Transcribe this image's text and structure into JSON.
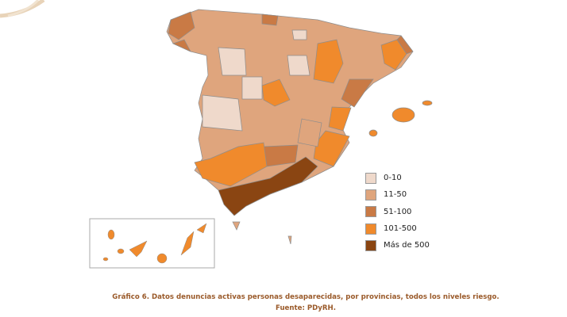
{
  "legend": {
    "items": [
      {
        "label": "0-10",
        "color": "#efd9cb"
      },
      {
        "label": "11-50",
        "color": "#dfa57d"
      },
      {
        "label": "51-100",
        "color": "#c97a45"
      },
      {
        "label": "101-500",
        "color": "#f08a2c"
      },
      {
        "label": "Más de 500",
        "color": "#8a4512"
      }
    ]
  },
  "caption": {
    "title": "Gráfico 6. Datos denuncias activas personas desaparecidas, por provincias, todos los niveles riesgo.",
    "source": "Fuente: PDyRH."
  }
}
